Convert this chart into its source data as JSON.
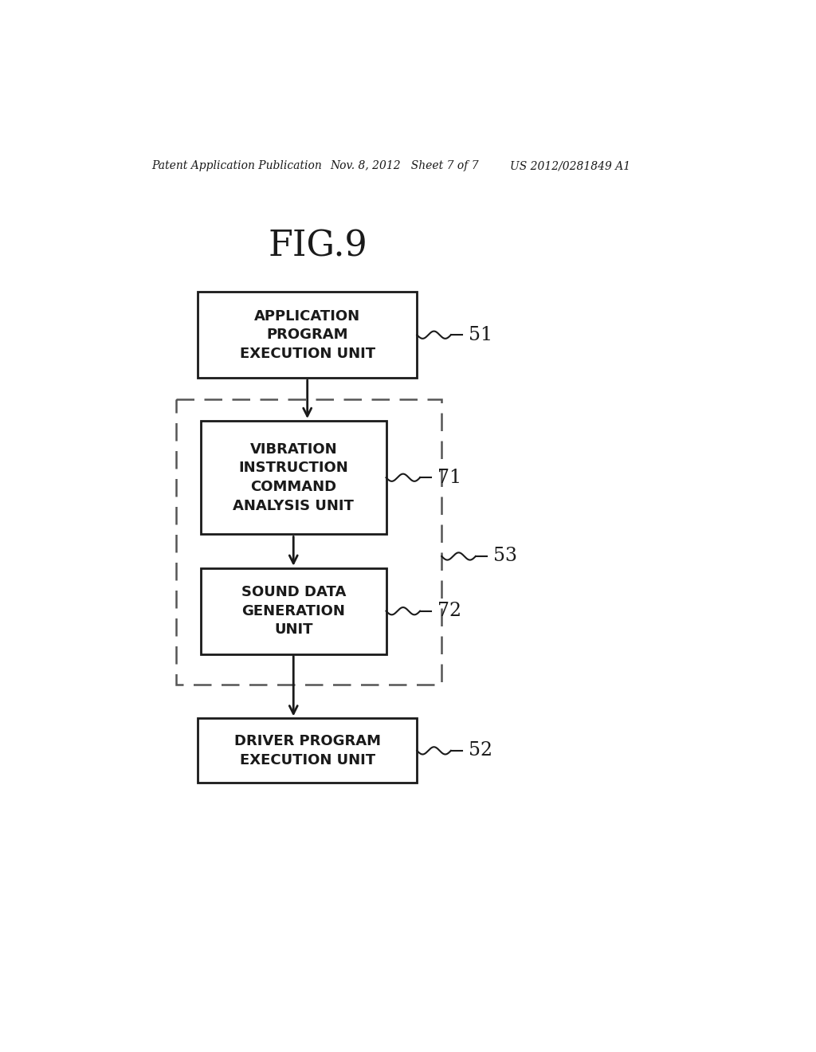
{
  "title": "FIG.9",
  "header_left": "Patent Application Publication",
  "header_mid": "Nov. 8, 2012   Sheet 7 of 7",
  "header_right": "US 2012/0281849 A1",
  "box1_text": "APPLICATION\nPROGRAM\nEXECUTION UNIT",
  "box1_label": "51",
  "box2_text": "VIBRATION\nINSTRUCTION\nCOMMAND\nANALYSIS UNIT",
  "box2_label": "71",
  "box3_text": "SOUND DATA\nGENERATION\nUNIT",
  "box3_label": "72",
  "box4_text": "DRIVER PROGRAM\nEXECUTION UNIT",
  "box4_label": "52",
  "outer_box_label": "53",
  "bg_color": "#ffffff",
  "box_edge_color": "#1a1a1a",
  "text_color": "#1a1a1a",
  "arrow_color": "#1a1a1a",
  "dashed_color": "#555555"
}
